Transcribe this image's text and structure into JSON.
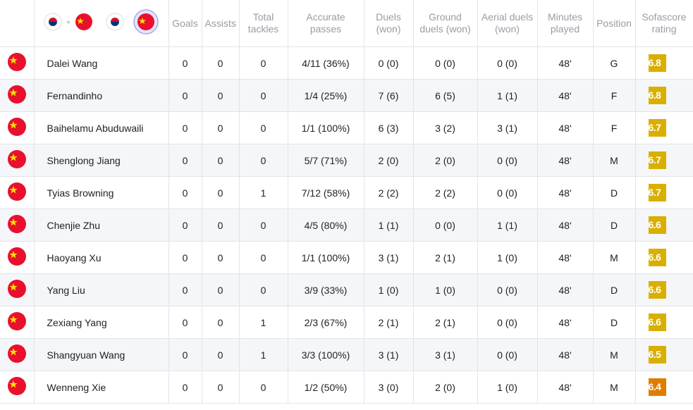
{
  "table": {
    "headers": [
      "Goals",
      "Assists",
      "Total tackles",
      "Accurate passes",
      "Duels (won)",
      "Ground duels (won)",
      "Aerial duels (won)",
      "Minutes played",
      "Position",
      "Sofascore rating"
    ],
    "rows": [
      {
        "name": "Dalei Wang",
        "goals": 0,
        "assists": 0,
        "tackles": 0,
        "passes": "4/11 (36%)",
        "duels": "0 (0)",
        "ground": "0 (0)",
        "aerial": "0 (0)",
        "minutes": "48'",
        "position": "G",
        "rating": 6.8,
        "rating_color": "#d9af00"
      },
      {
        "name": "Fernandinho",
        "goals": 0,
        "assists": 0,
        "tackles": 0,
        "passes": "1/4 (25%)",
        "duels": "7 (6)",
        "ground": "6 (5)",
        "aerial": "1 (1)",
        "minutes": "48'",
        "position": "F",
        "rating": 6.8,
        "rating_color": "#d9af00"
      },
      {
        "name": "Baihelamu Abuduwaili",
        "goals": 0,
        "assists": 0,
        "tackles": 0,
        "passes": "1/1 (100%)",
        "duels": "6 (3)",
        "ground": "3 (2)",
        "aerial": "3 (1)",
        "minutes": "48'",
        "position": "F",
        "rating": 6.7,
        "rating_color": "#d9af00"
      },
      {
        "name": "Shenglong Jiang",
        "goals": 0,
        "assists": 0,
        "tackles": 0,
        "passes": "5/7 (71%)",
        "duels": "2 (0)",
        "ground": "2 (0)",
        "aerial": "0 (0)",
        "minutes": "48'",
        "position": "M",
        "rating": 6.7,
        "rating_color": "#d9af00"
      },
      {
        "name": "Tyias Browning",
        "goals": 0,
        "assists": 0,
        "tackles": 1,
        "passes": "7/12 (58%)",
        "duels": "2 (2)",
        "ground": "2 (2)",
        "aerial": "0 (0)",
        "minutes": "48'",
        "position": "D",
        "rating": 6.7,
        "rating_color": "#d9af00"
      },
      {
        "name": "Chenjie Zhu",
        "goals": 0,
        "assists": 0,
        "tackles": 0,
        "passes": "4/5 (80%)",
        "duels": "1 (1)",
        "ground": "0 (0)",
        "aerial": "1 (1)",
        "minutes": "48'",
        "position": "D",
        "rating": 6.6,
        "rating_color": "#d9af00"
      },
      {
        "name": "Haoyang Xu",
        "goals": 0,
        "assists": 0,
        "tackles": 0,
        "passes": "1/1 (100%)",
        "duels": "3 (1)",
        "ground": "2 (1)",
        "aerial": "1 (0)",
        "minutes": "48'",
        "position": "M",
        "rating": 6.6,
        "rating_color": "#d9af00"
      },
      {
        "name": "Yang Liu",
        "goals": 0,
        "assists": 0,
        "tackles": 0,
        "passes": "3/9 (33%)",
        "duels": "1 (0)",
        "ground": "1 (0)",
        "aerial": "0 (0)",
        "minutes": "48'",
        "position": "D",
        "rating": 6.6,
        "rating_color": "#d9af00"
      },
      {
        "name": "Zexiang Yang",
        "goals": 0,
        "assists": 0,
        "tackles": 1,
        "passes": "2/3 (67%)",
        "duels": "2 (1)",
        "ground": "2 (1)",
        "aerial": "0 (0)",
        "minutes": "48'",
        "position": "D",
        "rating": 6.6,
        "rating_color": "#d9af00"
      },
      {
        "name": "Shangyuan Wang",
        "goals": 0,
        "assists": 0,
        "tackles": 1,
        "passes": "3/3 (100%)",
        "duels": "3 (1)",
        "ground": "3 (1)",
        "aerial": "0 (0)",
        "minutes": "48'",
        "position": "M",
        "rating": 6.5,
        "rating_color": "#d9af00"
      },
      {
        "name": "Wenneng Xie",
        "goals": 0,
        "assists": 0,
        "tackles": 0,
        "passes": "1/2 (50%)",
        "duels": "3 (0)",
        "ground": "2 (0)",
        "aerial": "1 (0)",
        "minutes": "48'",
        "position": "M",
        "rating": 6.4,
        "rating_color": "#e07c00"
      }
    ]
  }
}
